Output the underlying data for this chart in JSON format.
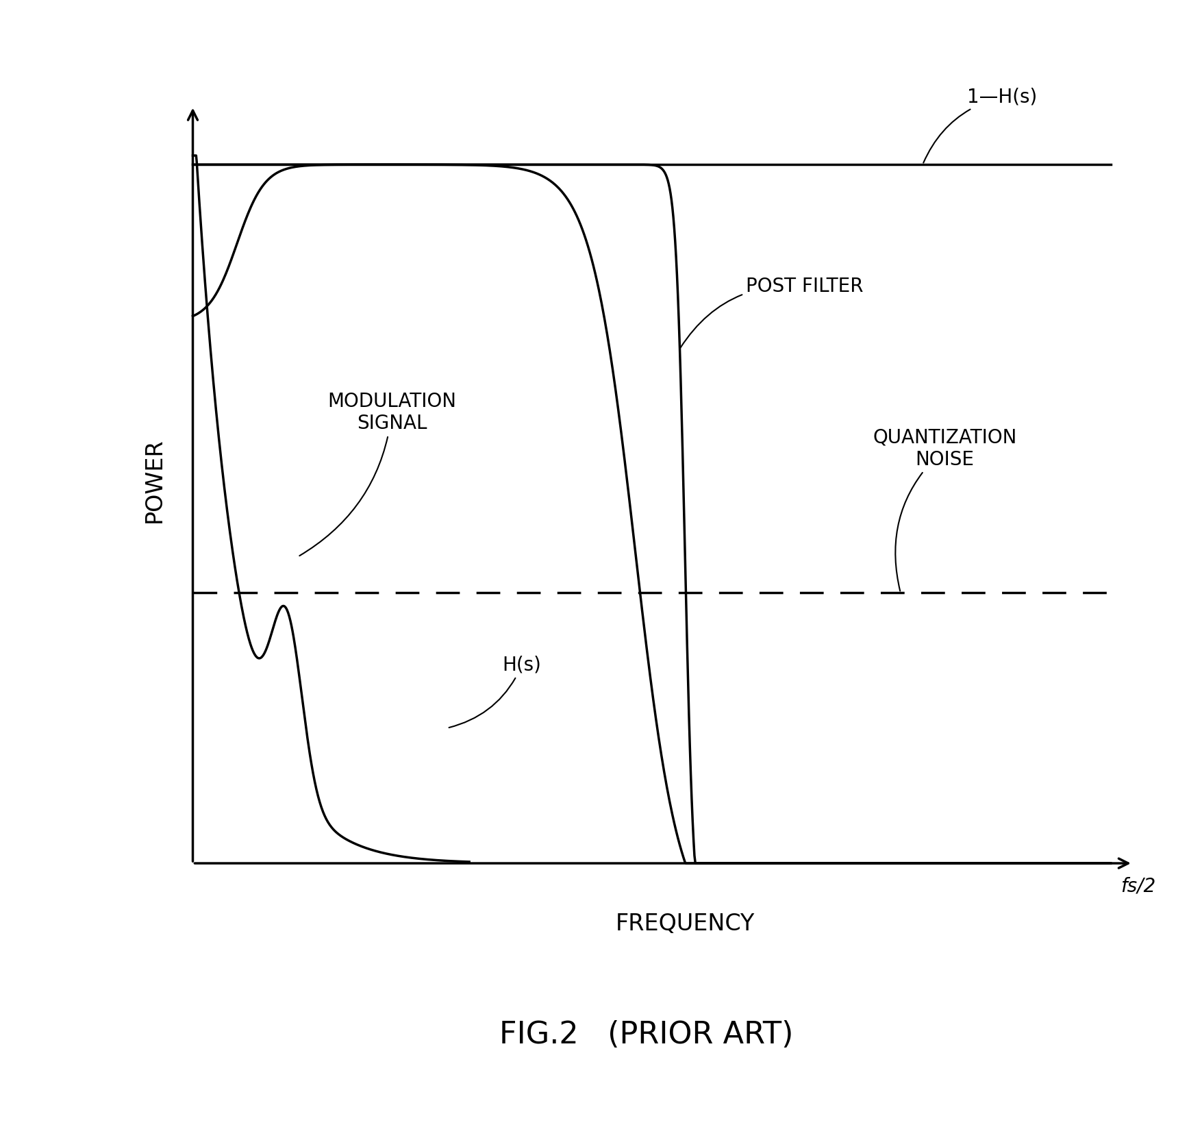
{
  "title": "FIG.2   （PRIOR ART）",
  "title_plain": "FIG.2   (PRIOR ART)",
  "xlabel": "FREQUENCY",
  "ylabel": "POWER",
  "fs2_label": "fs/2",
  "label_1_Hs": "1—H(s)",
  "label_Hs": "H(s)",
  "label_mod": "MODULATION\nSIGNAL",
  "label_post": "POST FILTER",
  "label_quant": "QUANTIZATION\nNOISE",
  "background_color": "#ffffff",
  "line_color": "#000000",
  "title_fontsize": 32,
  "axis_label_fontsize": 24,
  "annotation_fontsize": 20
}
